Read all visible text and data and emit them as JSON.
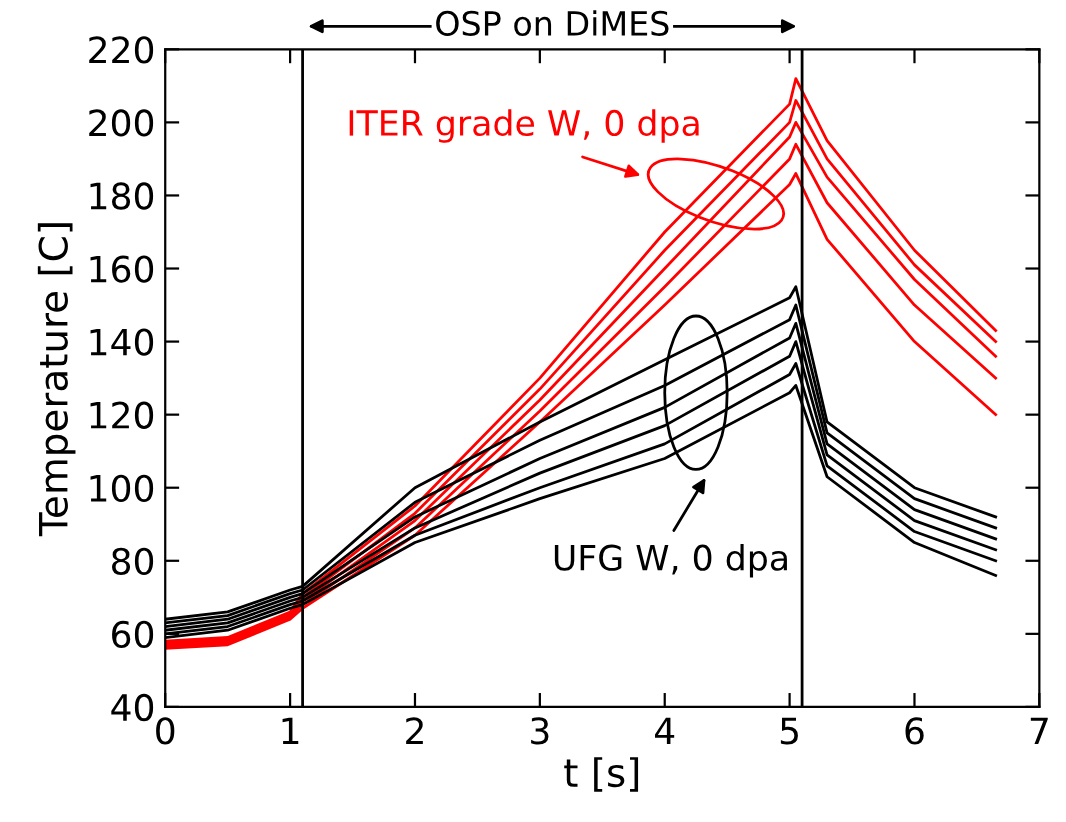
{
  "chart_data": {
    "type": "line",
    "xlabel": "t [s]",
    "ylabel": "Temperature [C]",
    "x": [
      0,
      0.5,
      1.0,
      1.1,
      2,
      3,
      4,
      5,
      5.05,
      5.3,
      6,
      6.65
    ],
    "series": [
      {
        "color": "#ff0000",
        "values": [
          58,
          59,
          66,
          71,
          95,
          130,
          170,
          205,
          212,
          195,
          165,
          143
        ]
      },
      {
        "color": "#ff0000",
        "values": [
          57.5,
          58.5,
          65.5,
          70,
          93,
          127,
          165,
          200,
          206,
          190,
          161,
          140
        ]
      },
      {
        "color": "#ff0000",
        "values": [
          57,
          58,
          65,
          69,
          91,
          124,
          160,
          196,
          200,
          185,
          157,
          136
        ]
      },
      {
        "color": "#ff0000",
        "values": [
          56.5,
          57.5,
          64.5,
          68,
          89,
          121,
          155,
          190,
          194,
          178,
          150,
          130
        ]
      },
      {
        "color": "#ff0000",
        "values": [
          56,
          57,
          64,
          67,
          87,
          118,
          150,
          183,
          186,
          168,
          140,
          120
        ]
      },
      {
        "color": "#000000",
        "values": [
          64,
          66,
          72,
          73,
          100,
          118,
          135,
          152,
          155,
          118,
          100,
          92
        ]
      },
      {
        "color": "#000000",
        "values": [
          63,
          65,
          71,
          72,
          96,
          113,
          128,
          146,
          150,
          115,
          97,
          89
        ]
      },
      {
        "color": "#000000",
        "values": [
          62,
          64,
          70,
          71,
          92,
          108,
          122,
          141,
          145,
          112,
          94,
          86
        ]
      },
      {
        "color": "#000000",
        "values": [
          61,
          63,
          69,
          70,
          89,
          104,
          117,
          136,
          140,
          109,
          91,
          83
        ]
      },
      {
        "color": "#000000",
        "values": [
          60,
          62,
          68,
          69,
          87,
          100,
          112,
          131,
          134,
          106,
          88,
          80
        ]
      },
      {
        "color": "#000000",
        "values": [
          59,
          61,
          67,
          68,
          85,
          97,
          108,
          126,
          128,
          103,
          85,
          76
        ]
      }
    ],
    "xlim": [
      0,
      7
    ],
    "xticks": [
      0,
      1,
      2,
      3,
      4,
      5,
      6,
      7
    ],
    "ylim": [
      40,
      220
    ],
    "yticks": [
      40,
      60,
      80,
      100,
      120,
      140,
      160,
      180,
      200,
      220
    ],
    "ref_lines": [
      {
        "axis": "x",
        "value": 1.1,
        "color": "#000000"
      },
      {
        "axis": "x",
        "value": 5.1,
        "color": "#000000"
      }
    ],
    "annotations": [
      "OSP on DiMES",
      "ITER grade W, 0 dpa",
      "UFG W, 0 dpa"
    ],
    "grid": false,
    "legend": false,
    "marker": "none",
    "line_style": "solid"
  }
}
